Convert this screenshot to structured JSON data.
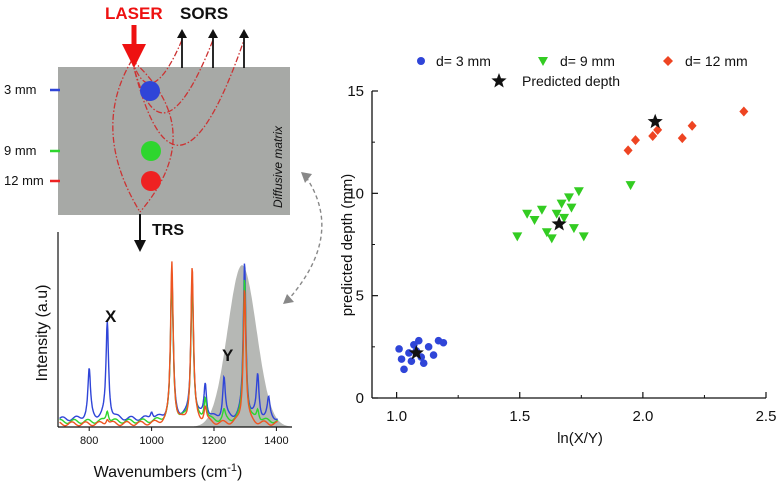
{
  "diagram": {
    "laser_label": "LASER",
    "sors_label": "SORS",
    "trs_label": "TRS",
    "matrix_label": "Diffusive matrix",
    "depth_labels": [
      "3 mm",
      "9 mm",
      "12 mm"
    ],
    "inclusion_colors": [
      "#2f45d8",
      "#2ed62e",
      "#ee2222"
    ],
    "laser_color": "#ee1111",
    "matrix_color": "#a7a9a6"
  },
  "chart_data": [
    {
      "type": "line",
      "title": "",
      "xlabel": "Wavenumbers (cm",
      "xlabel_sup": "-1",
      "xlabel_close": ")",
      "ylabel": "Intensity (a.u)",
      "xlim": [
        700,
        1450
      ],
      "ylim": [
        0,
        1
      ],
      "xticks": [
        800,
        1000,
        1200,
        1400
      ],
      "annotations": [
        "X",
        "Y"
      ],
      "shaded_band": {
        "center": 1290,
        "width": 65,
        "height": 0.83,
        "color": "#b6b8b5"
      },
      "series": [
        {
          "name": "d= 3 mm",
          "color": "#2f45d8",
          "peaks": [
            [
              800,
              0.25
            ],
            [
              858,
              0.5
            ],
            [
              1000,
              0.04
            ],
            [
              1065,
              0.72
            ],
            [
              1130,
              0.72
            ],
            [
              1172,
              0.18
            ],
            [
              1232,
              0.21
            ],
            [
              1298,
              0.8
            ],
            [
              1340,
              0.22
            ],
            [
              1375,
              0.1
            ]
          ]
        },
        {
          "name": "d= 9 mm",
          "color": "#2ed62e",
          "peaks": [
            [
              858,
              0.06
            ],
            [
              1065,
              0.74
            ],
            [
              1130,
              0.72
            ],
            [
              1172,
              0.12
            ],
            [
              1232,
              0.05
            ],
            [
              1298,
              0.74
            ],
            [
              1340,
              0.06
            ]
          ]
        },
        {
          "name": "d= 12 mm",
          "color": "#ee5522",
          "peaks": [
            [
              858,
              0.03
            ],
            [
              1065,
              0.83
            ],
            [
              1130,
              0.8
            ],
            [
              1172,
              0.08
            ],
            [
              1298,
              0.7
            ]
          ]
        }
      ]
    },
    {
      "type": "scatter",
      "title": "",
      "xlabel": "ln(X/Y)",
      "ylabel": "predicted depth (mm)",
      "xlim": [
        0.9,
        2.5
      ],
      "ylim": [
        0,
        15
      ],
      "xticks": [
        "1.0",
        "1.5",
        "2.0",
        "2.5"
      ],
      "yticks": [
        "0",
        "5",
        "10",
        "15"
      ],
      "legend_position": "top",
      "series": [
        {
          "name": "d= 3 mm",
          "marker": "circle",
          "color": "#2f45d8",
          "points": [
            [
              1.01,
              2.4
            ],
            [
              1.02,
              1.9
            ],
            [
              1.03,
              1.4
            ],
            [
              1.05,
              2.2
            ],
            [
              1.06,
              1.8
            ],
            [
              1.07,
              2.6
            ],
            [
              1.08,
              2.3
            ],
            [
              1.09,
              2.8
            ],
            [
              1.1,
              2.0
            ],
            [
              1.11,
              1.7
            ],
            [
              1.13,
              2.5
            ],
            [
              1.15,
              2.1
            ],
            [
              1.17,
              2.8
            ],
            [
              1.19,
              2.7
            ]
          ]
        },
        {
          "name": "d= 9 mm",
          "marker": "triangle-down",
          "color": "#33cc22",
          "points": [
            [
              1.49,
              7.9
            ],
            [
              1.53,
              9.0
            ],
            [
              1.56,
              8.7
            ],
            [
              1.59,
              9.2
            ],
            [
              1.61,
              8.1
            ],
            [
              1.63,
              7.8
            ],
            [
              1.65,
              9.0
            ],
            [
              1.67,
              9.5
            ],
            [
              1.68,
              8.8
            ],
            [
              1.7,
              9.8
            ],
            [
              1.71,
              9.3
            ],
            [
              1.72,
              8.3
            ],
            [
              1.74,
              10.1
            ],
            [
              1.76,
              7.9
            ],
            [
              1.95,
              10.4
            ]
          ]
        },
        {
          "name": "d= 12 mm",
          "marker": "diamond",
          "color": "#ee4422",
          "points": [
            [
              1.94,
              12.1
            ],
            [
              1.97,
              12.6
            ],
            [
              2.04,
              12.8
            ],
            [
              2.06,
              13.1
            ],
            [
              2.16,
              12.7
            ],
            [
              2.2,
              13.3
            ],
            [
              2.41,
              14.0
            ]
          ]
        },
        {
          "name": "Predicted depth",
          "marker": "star",
          "color": "#111111",
          "points": [
            [
              1.08,
              2.2
            ],
            [
              1.66,
              8.5
            ],
            [
              2.05,
              13.5
            ]
          ]
        }
      ]
    }
  ]
}
